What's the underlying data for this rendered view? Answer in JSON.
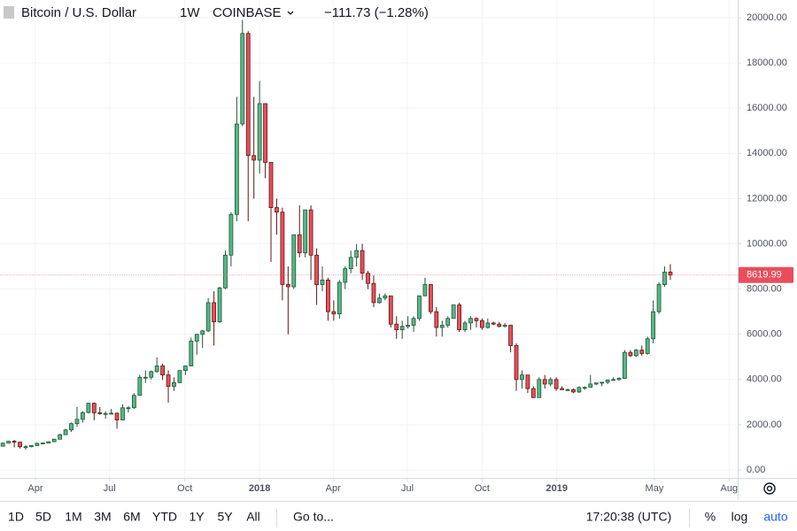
{
  "chart_data": {
    "type": "candlestick",
    "title": "Bitcoin / U.S. Dollar",
    "interval": "1W",
    "exchange": "COINBASE",
    "change": "−111.73 (−1.28%)",
    "up_color": "#53b987",
    "down_color": "#eb4d5c",
    "grid": true,
    "log_scale": false,
    "ylim": [
      -350,
      20780
    ],
    "yticks": [
      {
        "value": 0,
        "label": "0.00"
      },
      {
        "value": 2000,
        "label": "2000.00"
      },
      {
        "value": 4000,
        "label": "4000.00"
      },
      {
        "value": 6000,
        "label": "6000.00"
      },
      {
        "value": 8000,
        "label": "8000.00"
      },
      {
        "value": 10000,
        "label": "10000.00"
      },
      {
        "value": 12000,
        "label": "12000.00"
      },
      {
        "value": 14000,
        "label": "14000.00"
      },
      {
        "value": 16000,
        "label": "16000.00"
      },
      {
        "value": 18000,
        "label": "18000.00"
      },
      {
        "value": 20000,
        "label": "20000.00"
      }
    ],
    "xlim": [
      -0.5,
      128.8
    ],
    "xticks": [
      {
        "value": 5.7,
        "label": "Apr"
      },
      {
        "value": 18.7,
        "label": "Jul"
      },
      {
        "value": 31.9,
        "label": "Oct"
      },
      {
        "value": 45,
        "label": "2018"
      },
      {
        "value": 57.9,
        "label": "Apr"
      },
      {
        "value": 70.9,
        "label": "Jul"
      },
      {
        "value": 84,
        "label": "Oct"
      },
      {
        "value": 97.1,
        "label": "2019"
      },
      {
        "value": 114.2,
        "label": "May"
      },
      {
        "value": 127.3,
        "label": "Aug"
      }
    ],
    "candles": [
      [
        1050,
        1200,
        1040,
        1190
      ],
      [
        1190,
        1290,
        1170,
        1270
      ],
      [
        1270,
        1330,
        1000,
        1230
      ],
      [
        1230,
        1250,
        950,
        1030
      ],
      [
        1030,
        1100,
        900,
        1030
      ],
      [
        1030,
        1100,
        1000,
        1080
      ],
      [
        1080,
        1210,
        1070,
        1180
      ],
      [
        1180,
        1220,
        1160,
        1190
      ],
      [
        1190,
        1270,
        1190,
        1250
      ],
      [
        1250,
        1380,
        1240,
        1360
      ],
      [
        1360,
        1600,
        1350,
        1560
      ],
      [
        1560,
        1820,
        1550,
        1770
      ],
      [
        1770,
        2100,
        1680,
        2050
      ],
      [
        2050,
        2790,
        1900,
        2240
      ],
      [
        2240,
        2600,
        2100,
        2540
      ],
      [
        2540,
        2970,
        2500,
        2950
      ],
      [
        2950,
        2980,
        2200,
        2530
      ],
      [
        2530,
        2780,
        2450,
        2500
      ],
      [
        2500,
        2600,
        2270,
        2500
      ],
      [
        2500,
        2700,
        2460,
        2510
      ],
      [
        2510,
        2540,
        1830,
        2210
      ],
      [
        2210,
        2900,
        2210,
        2750
      ],
      [
        2750,
        2830,
        2540,
        2750
      ],
      [
        2750,
        3400,
        2700,
        3300
      ],
      [
        3300,
        4200,
        3300,
        4100
      ],
      [
        4100,
        4400,
        3850,
        4100
      ],
      [
        4100,
        4400,
        4000,
        4350
      ],
      [
        4350,
        4980,
        4300,
        4600
      ],
      [
        4600,
        4700,
        3980,
        4200
      ],
      [
        4200,
        4400,
        2980,
        3700
      ],
      [
        3700,
        4100,
        3500,
        3860
      ],
      [
        3860,
        4400,
        3850,
        4400
      ],
      [
        4400,
        4600,
        4200,
        4600
      ],
      [
        4600,
        5850,
        4580,
        5700
      ],
      [
        5700,
        6000,
        5100,
        6000
      ],
      [
        6000,
        6200,
        5400,
        6150
      ],
      [
        6150,
        7600,
        6100,
        7400
      ],
      [
        7400,
        7900,
        5500,
        6550
      ],
      [
        6550,
        8100,
        6500,
        8050
      ],
      [
        8050,
        9700,
        8000,
        9500
      ],
      [
        9500,
        11400,
        9000,
        11300
      ],
      [
        11300,
        16500,
        11000,
        15300
      ],
      [
        15300,
        19900,
        15200,
        19300
      ],
      [
        19300,
        19400,
        11000,
        13900
      ],
      [
        13900,
        16500,
        12000,
        13700
      ],
      [
        13700,
        17200,
        13100,
        16200
      ],
      [
        16200,
        16200,
        12900,
        13600
      ],
      [
        13600,
        13600,
        9200,
        11600
      ],
      [
        11600,
        12000,
        10400,
        11400
      ],
      [
        11400,
        11600,
        7500,
        8200
      ],
      [
        8200,
        9000,
        6000,
        8100
      ],
      [
        8100,
        10400,
        8000,
        10400
      ],
      [
        10400,
        11700,
        9400,
        9600
      ],
      [
        9600,
        11500,
        9400,
        11500
      ],
      [
        11500,
        11700,
        8400,
        9500
      ],
      [
        9500,
        9800,
        7300,
        8200
      ],
      [
        8200,
        9000,
        7900,
        8400
      ],
      [
        8400,
        8500,
        6600,
        7000
      ],
      [
        7000,
        7500,
        6600,
        6900
      ],
      [
        6900,
        8400,
        6700,
        8300
      ],
      [
        8300,
        9000,
        8000,
        8900
      ],
      [
        8900,
        9700,
        8700,
        9400
      ],
      [
        9400,
        9990,
        9000,
        9700
      ],
      [
        9700,
        10000,
        8400,
        8700
      ],
      [
        8700,
        8800,
        8000,
        8250
      ],
      [
        8250,
        8600,
        7200,
        7400
      ],
      [
        7400,
        7800,
        7350,
        7600
      ],
      [
        7600,
        7800,
        7500,
        7700
      ],
      [
        7700,
        7700,
        6300,
        6450
      ],
      [
        6450,
        6800,
        5800,
        6200
      ],
      [
        6200,
        6600,
        5800,
        6350
      ],
      [
        6350,
        6800,
        6250,
        6400
      ],
      [
        6400,
        6800,
        6100,
        6700
      ],
      [
        6700,
        7700,
        6600,
        7700
      ],
      [
        7700,
        8500,
        7700,
        8200
      ],
      [
        8200,
        8200,
        6900,
        7000
      ],
      [
        7000,
        7200,
        5900,
        6300
      ],
      [
        6300,
        6600,
        5900,
        6400
      ],
      [
        6400,
        6800,
        6300,
        6700
      ],
      [
        6700,
        7300,
        6700,
        7300
      ],
      [
        7300,
        7400,
        6100,
        6200
      ],
      [
        6200,
        6600,
        6100,
        6500
      ],
      [
        6500,
        6800,
        6200,
        6700
      ],
      [
        6700,
        6750,
        6300,
        6600
      ],
      [
        6600,
        6700,
        6200,
        6300
      ],
      [
        6300,
        6700,
        6250,
        6500
      ],
      [
        6500,
        6550,
        6400,
        6450
      ],
      [
        6450,
        6550,
        6300,
        6350
      ],
      [
        6350,
        6500,
        6300,
        6400
      ],
      [
        6400,
        6400,
        5200,
        5500
      ],
      [
        5500,
        5600,
        3500,
        4000
      ],
      [
        4000,
        4400,
        3600,
        4200
      ],
      [
        4200,
        4200,
        3400,
        3600
      ],
      [
        3600,
        3700,
        3200,
        3200
      ],
      [
        3200,
        4100,
        3200,
        4000
      ],
      [
        4000,
        4200,
        3600,
        3800
      ],
      [
        3800,
        4100,
        3700,
        4000
      ],
      [
        4000,
        4100,
        3500,
        3600
      ],
      [
        3600,
        3700,
        3550,
        3550
      ],
      [
        3550,
        3600,
        3500,
        3550
      ],
      [
        3550,
        3600,
        3400,
        3450
      ],
      [
        3450,
        3700,
        3400,
        3650
      ],
      [
        3650,
        3700,
        3550,
        3650
      ],
      [
        3650,
        4200,
        3650,
        3800
      ],
      [
        3800,
        3850,
        3750,
        3850
      ],
      [
        3850,
        3900,
        3700,
        3880
      ],
      [
        3880,
        4000,
        3800,
        3980
      ],
      [
        3980,
        4100,
        3950,
        4000
      ],
      [
        4000,
        4100,
        3950,
        4050
      ],
      [
        4050,
        5300,
        4050,
        5200
      ],
      [
        5200,
        5300,
        5000,
        5050
      ],
      [
        5050,
        5350,
        5000,
        5300
      ],
      [
        5300,
        5500,
        5050,
        5150
      ],
      [
        5150,
        5900,
        5100,
        5800
      ],
      [
        5800,
        7500,
        5600,
        7000
      ],
      [
        7000,
        8300,
        6900,
        8200
      ],
      [
        8200,
        9000,
        8100,
        8750
      ],
      [
        8750,
        9100,
        8400,
        8619.99
      ]
    ]
  },
  "toolbar": {
    "ranges": [
      "1D",
      "5D",
      "1M",
      "3M",
      "6M",
      "YTD",
      "1Y",
      "5Y",
      "All"
    ],
    "goto": "Go to...",
    "clock": "17:20:38 (UTC)",
    "options": [
      "%",
      "log",
      "auto"
    ]
  }
}
